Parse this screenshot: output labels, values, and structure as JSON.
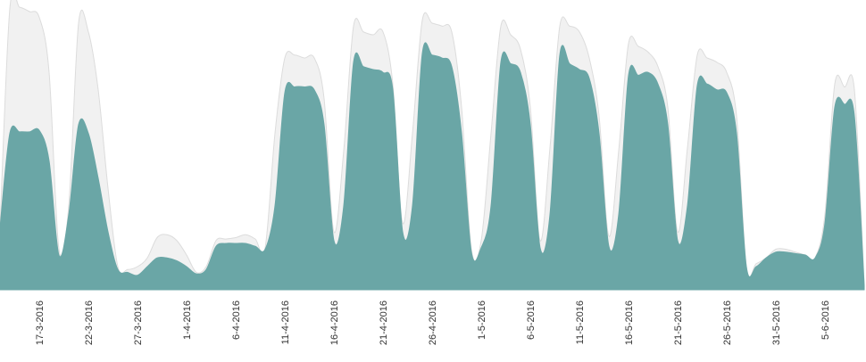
{
  "chart_data": {
    "type": "area",
    "categories": [
      null,
      null,
      null,
      null,
      "17-3-2016",
      null,
      null,
      null,
      null,
      "22-3-2016",
      null,
      null,
      null,
      null,
      "27-3-2016",
      null,
      null,
      null,
      null,
      "1-4-2016",
      null,
      null,
      null,
      null,
      "6-4-2016",
      null,
      null,
      null,
      null,
      "11-4-2016",
      null,
      null,
      null,
      null,
      "16-4-2016",
      null,
      null,
      null,
      null,
      "21-4-2016",
      null,
      null,
      null,
      null,
      "26-4-2016",
      null,
      null,
      null,
      null,
      "1-5-2016",
      null,
      null,
      null,
      null,
      "6-5-2016",
      null,
      null,
      null,
      null,
      "11-5-2016",
      null,
      null,
      null,
      null,
      "16-5-2016",
      null,
      null,
      null,
      null,
      "21-5-2016",
      null,
      null,
      null,
      null,
      "26-5-2016",
      null,
      null,
      null,
      null,
      "31-5-2016",
      null,
      null,
      null,
      null,
      "5-6-2016",
      null,
      null,
      null,
      null
    ],
    "series": [
      {
        "color": "#f1f1f1",
        "values": [
          21.5,
          97,
          97.5,
          96,
          94,
          75,
          14,
          29,
          92,
          89,
          69,
          35,
          8,
          7,
          8,
          11,
          18,
          19,
          17,
          12,
          6,
          8,
          17,
          17.5,
          18,
          19,
          17.5,
          14.5,
          54,
          80,
          81,
          80,
          80,
          66,
          20,
          48,
          91,
          89,
          88,
          89,
          71,
          23,
          54,
          93,
          92,
          91,
          89,
          63,
          14,
          17,
          54,
          91,
          88,
          83,
          63,
          17,
          49,
          91,
          91,
          89,
          80,
          60,
          18.5,
          48,
          85,
          84,
          82,
          77,
          63,
          20,
          49,
          81,
          80,
          78.5,
          75,
          60,
          8,
          9,
          11,
          14,
          14,
          13,
          12,
          11,
          26,
          71,
          70,
          69,
          2
        ]
      },
      {
        "color": "#6aa6a6",
        "values": [
          21.5,
          54,
          54.5,
          54.5,
          55,
          44.5,
          12,
          26,
          57,
          54,
          38.5,
          20,
          7,
          6,
          5,
          8,
          11,
          11,
          10,
          8,
          5.5,
          7,
          15,
          16,
          16,
          16,
          15,
          14,
          29,
          68,
          70,
          70,
          69,
          57,
          17,
          29,
          78.5,
          77,
          76,
          75,
          69,
          20,
          29,
          81.5,
          81,
          80,
          77,
          54,
          13,
          14.5,
          29,
          78.5,
          78,
          75,
          57,
          14.5,
          26,
          81,
          78,
          76,
          73,
          54,
          15,
          26,
          74,
          74,
          75,
          71,
          57,
          17,
          29,
          70.5,
          71,
          69,
          68,
          54,
          8,
          8,
          11,
          13,
          13,
          12.5,
          12,
          11,
          23,
          63,
          64,
          60,
          1.5
        ]
      }
    ],
    "ylim": [
      0,
      100
    ]
  }
}
